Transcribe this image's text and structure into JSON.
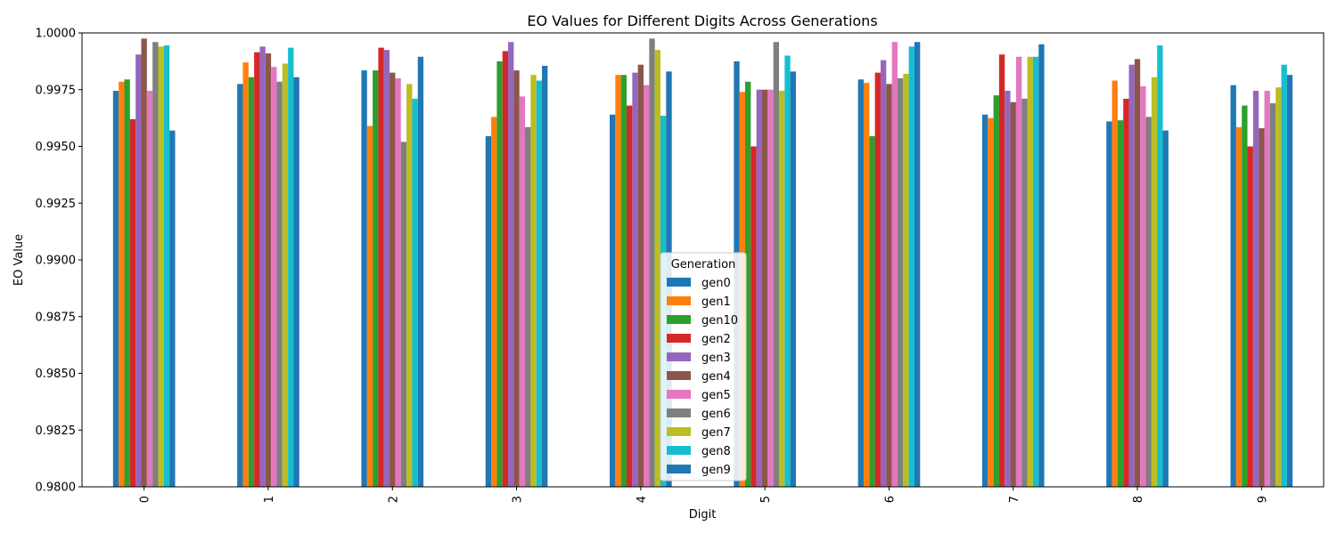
{
  "chart_data": {
    "type": "bar",
    "title": "EO Values for Different Digits Across Generations",
    "xlabel": "Digit",
    "ylabel": "EO Value",
    "ylim": [
      0.98,
      1.0
    ],
    "yticks": [
      "0.9800",
      "0.9825",
      "0.9850",
      "0.9875",
      "0.9900",
      "0.9925",
      "0.9950",
      "0.9975",
      "1.0000"
    ],
    "categories": [
      "0",
      "1",
      "2",
      "3",
      "4",
      "5",
      "6",
      "7",
      "8",
      "9"
    ],
    "legend": {
      "title": "Generation",
      "placement": "center-bottom"
    },
    "series": [
      {
        "name": "gen0",
        "color": "#1f77b4",
        "values": [
          0.99745,
          0.99775,
          0.99835,
          0.99545,
          0.9964,
          0.99875,
          0.99795,
          0.9964,
          0.9961,
          0.9977
        ]
      },
      {
        "name": "gen1",
        "color": "#ff7f0e",
        "values": [
          0.99785,
          0.9987,
          0.9959,
          0.9963,
          0.99815,
          0.9974,
          0.9978,
          0.99625,
          0.9979,
          0.99585
        ]
      },
      {
        "name": "gen10",
        "color": "#2ca02c",
        "values": [
          0.99795,
          0.99805,
          0.99835,
          0.99875,
          0.99815,
          0.99785,
          0.99545,
          0.99725,
          0.99615,
          0.9968
        ]
      },
      {
        "name": "gen2",
        "color": "#d62728",
        "values": [
          0.9962,
          0.99915,
          0.99935,
          0.9992,
          0.9968,
          0.995,
          0.99825,
          0.99905,
          0.9971,
          0.995
        ]
      },
      {
        "name": "gen3",
        "color": "#9467bd",
        "values": [
          0.99905,
          0.9994,
          0.99925,
          0.9996,
          0.99825,
          0.9975,
          0.9988,
          0.99745,
          0.9986,
          0.99745
        ]
      },
      {
        "name": "gen4",
        "color": "#8c564b",
        "values": [
          0.99975,
          0.9991,
          0.99825,
          0.99835,
          0.9986,
          0.9975,
          0.99775,
          0.99695,
          0.99885,
          0.9958
        ]
      },
      {
        "name": "gen5",
        "color": "#e377c2",
        "values": [
          0.99745,
          0.9985,
          0.998,
          0.9972,
          0.9977,
          0.9975,
          0.9996,
          0.99895,
          0.99765,
          0.99745
        ]
      },
      {
        "name": "gen6",
        "color": "#7f7f7f",
        "values": [
          0.9996,
          0.99785,
          0.9952,
          0.99585,
          0.99975,
          0.9996,
          0.998,
          0.9971,
          0.9963,
          0.9969
        ]
      },
      {
        "name": "gen7",
        "color": "#bcbd22",
        "values": [
          0.9994,
          0.99865,
          0.99775,
          0.99815,
          0.99925,
          0.99745,
          0.9982,
          0.99895,
          0.99805,
          0.9976
        ]
      },
      {
        "name": "gen8",
        "color": "#17becf",
        "values": [
          0.99945,
          0.99935,
          0.9971,
          0.9979,
          0.99635,
          0.999,
          0.9994,
          0.99895,
          0.99945,
          0.9986
        ]
      },
      {
        "name": "gen9",
        "color": "#1f77b4",
        "values": [
          0.9957,
          0.99805,
          0.99895,
          0.99855,
          0.9983,
          0.9983,
          0.9996,
          0.9995,
          0.9957,
          0.99815
        ]
      }
    ],
    "grid": false
  }
}
